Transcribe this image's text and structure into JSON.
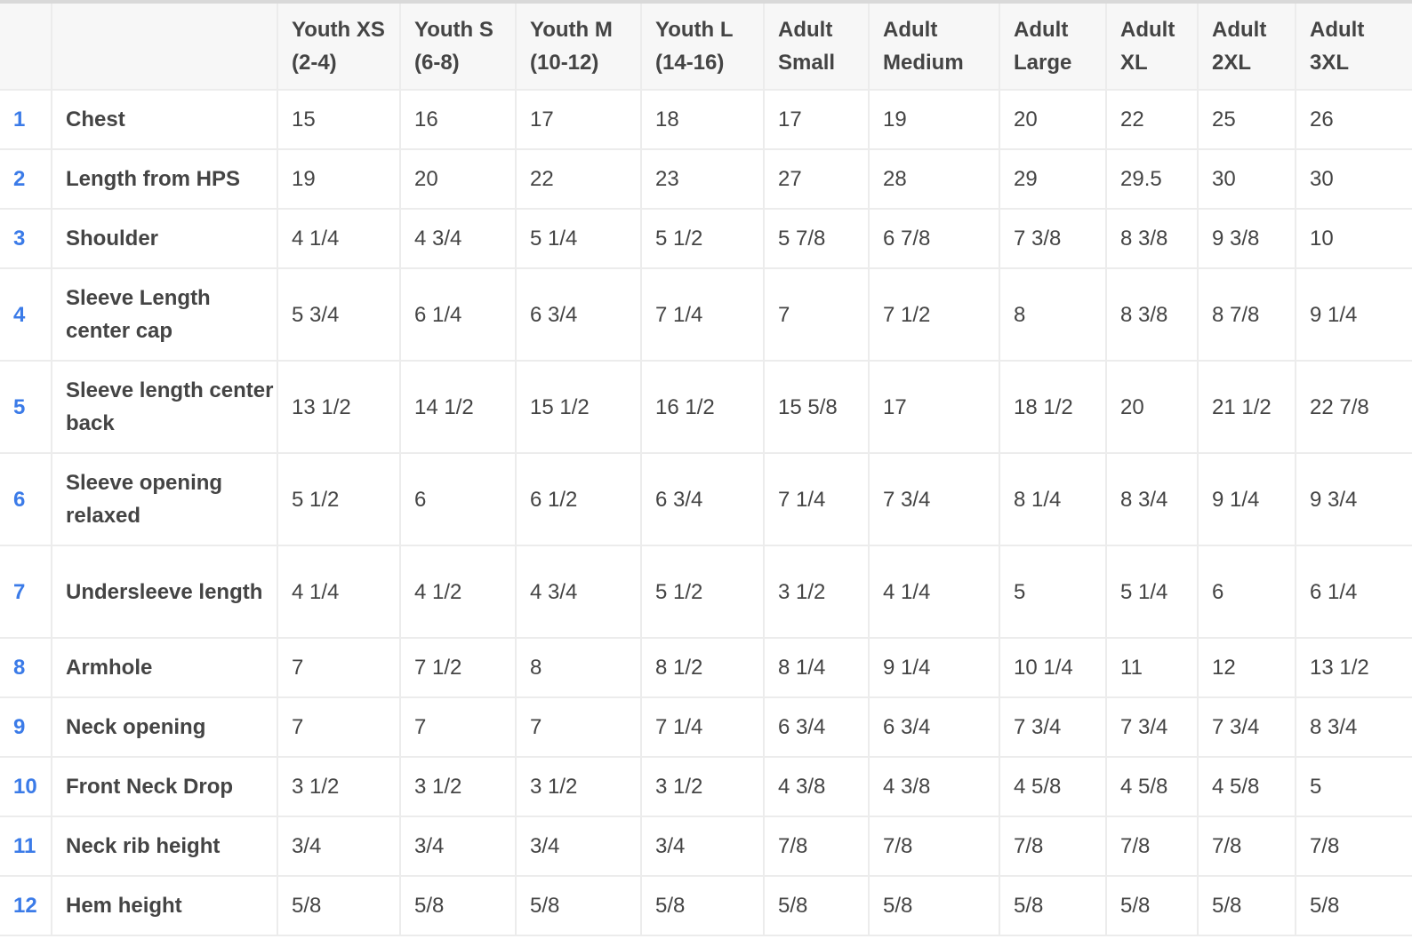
{
  "colors": {
    "row_number": "#3b7be8",
    "header_background": "#f7f7f7",
    "grid_line": "#ececec"
  },
  "columns": [
    {
      "line1": "Youth XS",
      "line2": "(2-4)"
    },
    {
      "line1": "Youth S",
      "line2": "(6-8)"
    },
    {
      "line1": "Youth M",
      "line2": "(10-12)"
    },
    {
      "line1": "Youth L",
      "line2": "(14-16)"
    },
    {
      "line1": "Adult",
      "line2": "Small"
    },
    {
      "line1": "Adult",
      "line2": "Medium"
    },
    {
      "line1": "Adult",
      "line2": "Large"
    },
    {
      "line1": "Adult",
      "line2": "XL"
    },
    {
      "line1": "Adult",
      "line2": "2XL"
    },
    {
      "line1": "Adult",
      "line2": "3XL"
    }
  ],
  "rows": [
    {
      "num": "1",
      "label": "Chest",
      "values": [
        "15",
        "16",
        "17",
        "18",
        "17",
        "19",
        "20",
        "22",
        "25",
        "26"
      ]
    },
    {
      "num": "2",
      "label": "Length from HPS",
      "values": [
        "19",
        "20",
        "22",
        "23",
        "27",
        "28",
        "29",
        "29.5",
        "30",
        "30"
      ]
    },
    {
      "num": "3",
      "label": "Shoulder",
      "values": [
        "4 1/4",
        "4 3/4",
        "5 1/4",
        "5 1/2",
        "5 7/8",
        "6 7/8",
        "7 3/8",
        "8 3/8",
        "9 3/8",
        "10"
      ]
    },
    {
      "num": "4",
      "label": "Sleeve Length center cap",
      "values": [
        "5 3/4",
        "6 1/4",
        "6 3/4",
        "7 1/4",
        "7",
        "7 1/2",
        "8",
        "8 3/8",
        "8 7/8",
        "9 1/4"
      ]
    },
    {
      "num": "5",
      "label": "Sleeve length center back",
      "values": [
        "13 1/2",
        "14 1/2",
        "15 1/2",
        "16 1/2",
        "15 5/8",
        "17",
        "18 1/2",
        "20",
        "21 1/2",
        "22 7/8"
      ]
    },
    {
      "num": "6",
      "label": "Sleeve opening relaxed",
      "values": [
        "5 1/2",
        "6",
        "6 1/2",
        "6 3/4",
        "7 1/4",
        "7 3/4",
        "8 1/4",
        "8 3/4",
        "9 1/4",
        "9 3/4"
      ]
    },
    {
      "num": "7",
      "label": "Undersleeve length",
      "values": [
        "4 1/4",
        "4 1/2",
        "4 3/4",
        "5 1/2",
        "3 1/2",
        "4 1/4",
        "5",
        "5 1/4",
        "6",
        "6 1/4"
      ]
    },
    {
      "num": "8",
      "label": "Armhole",
      "values": [
        "7",
        "7 1/2",
        "8",
        "8 1/2",
        "8 1/4",
        "9 1/4",
        "10 1/4",
        "11",
        "12",
        "13 1/2"
      ]
    },
    {
      "num": "9",
      "label": "Neck opening",
      "values": [
        "7",
        "7",
        "7",
        "7 1/4",
        "6 3/4",
        "6 3/4",
        "7 3/4",
        "7 3/4",
        "7 3/4",
        "8 3/4"
      ]
    },
    {
      "num": "10",
      "label": "Front Neck Drop",
      "values": [
        "3 1/2",
        "3 1/2",
        "3 1/2",
        "3 1/2",
        "4 3/8",
        "4 3/8",
        "4 5/8",
        "4 5/8",
        "4 5/8",
        "5"
      ]
    },
    {
      "num": "11",
      "label": "Neck rib height",
      "values": [
        "3/4",
        "3/4",
        "3/4",
        "3/4",
        "7/8",
        "7/8",
        "7/8",
        "7/8",
        "7/8",
        "7/8"
      ]
    },
    {
      "num": "12",
      "label": "Hem height",
      "values": [
        "5/8",
        "5/8",
        "5/8",
        "5/8",
        "5/8",
        "5/8",
        "5/8",
        "5/8",
        "5/8",
        "5/8"
      ]
    }
  ]
}
